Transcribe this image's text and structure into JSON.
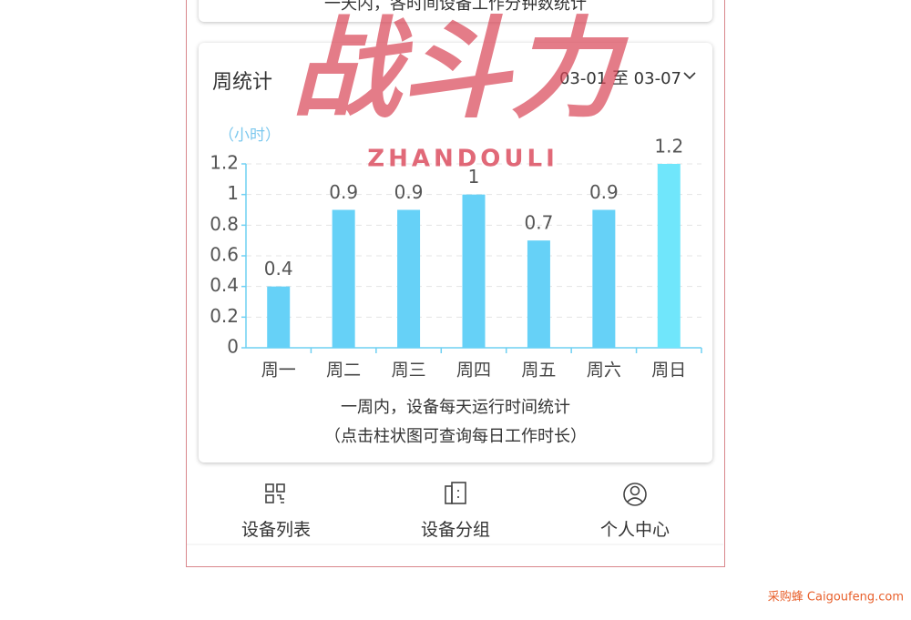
{
  "top_card": {
    "caption": "一天内，各时间设备工作分钟数统计"
  },
  "card": {
    "title": "周统计",
    "date_range": "03-01 至 03-07",
    "unit": "（小时）",
    "caption": "一周内，设备每天运行时间统计",
    "hint": "（点击柱状图可查询每日工作时长）"
  },
  "chart_data": {
    "type": "bar",
    "categories": [
      "周一",
      "周二",
      "周三",
      "周四",
      "周五",
      "周六",
      "周日"
    ],
    "values": [
      0.4,
      0.9,
      0.9,
      1,
      0.7,
      0.9,
      1.2
    ],
    "colors": [
      "#66d1f7",
      "#66d1f7",
      "#66d1f7",
      "#66d1f7",
      "#66d1f7",
      "#66d1f7",
      "#70e6fb"
    ],
    "ylim": [
      0,
      1.2
    ],
    "yticks": [
      0,
      0.2,
      0.4,
      0.6,
      0.8,
      1,
      1.2
    ],
    "grid": true
  },
  "nav": [
    "设备列表",
    "设备分组",
    "个人中心"
  ],
  "watermark": {
    "title": "战斗力",
    "subtitle": "ZHANDOULI"
  },
  "credit": "采购蜂 Caigoufeng.com"
}
